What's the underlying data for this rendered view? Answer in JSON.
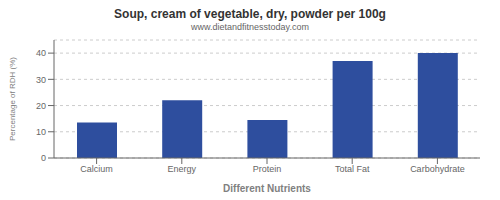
{
  "chart_data": {
    "type": "bar",
    "title": "Soup, cream of vegetable, dry, powder per 100g",
    "subtitle": "www.dietandfitnesstoday.com",
    "xlabel": "Different Nutrients",
    "ylabel": "Percentage of RDH (%)",
    "categories": [
      "Calcium",
      "Energy",
      "Protein",
      "Total Fat",
      "Carbohydrate"
    ],
    "values": [
      13.5,
      22.0,
      14.5,
      37.0,
      40.0
    ],
    "color": "#2e4e9e",
    "ylim": [
      0,
      45
    ],
    "yticks": [
      0,
      10,
      20,
      30,
      40
    ],
    "grid": true
  }
}
